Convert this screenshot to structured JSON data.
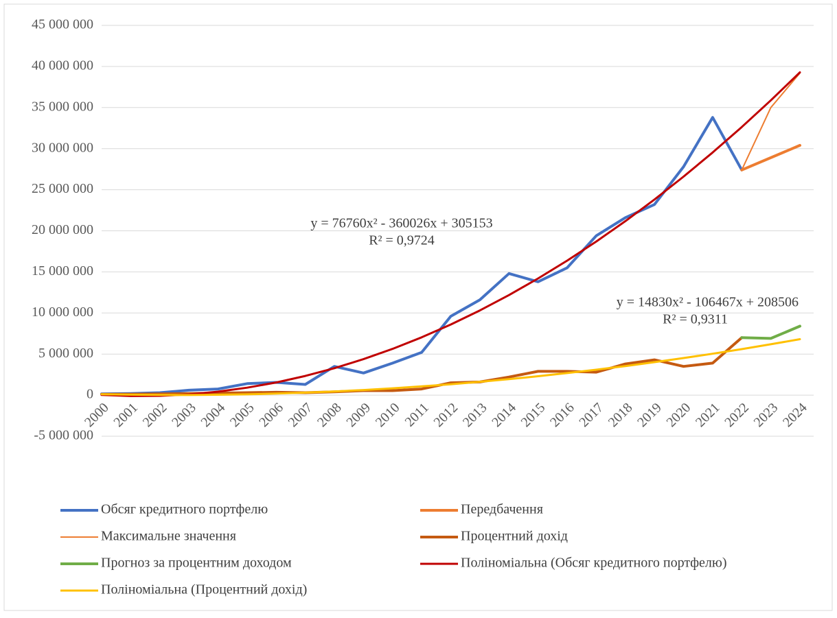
{
  "chart_data": {
    "type": "line",
    "categories": [
      "2000",
      "2001",
      "2002",
      "2003",
      "2004",
      "2005",
      "2006",
      "2007",
      "2008",
      "2009",
      "2010",
      "2011",
      "2012",
      "2013",
      "2014",
      "2015",
      "2016",
      "2017",
      "2018",
      "2019",
      "2020",
      "2021",
      "2022",
      "2023",
      "2024"
    ],
    "ylim": [
      -5000000,
      45000000
    ],
    "yticks": [
      {
        "value": -5000000,
        "label": "-5 000 000"
      },
      0,
      {
        "value": 5000000,
        "label": "5 000 000"
      },
      {
        "value": 10000000,
        "label": "10 000 000"
      },
      {
        "value": 15000000,
        "label": "15 000 000"
      },
      {
        "value": 20000000,
        "label": "20 000 000"
      },
      {
        "value": 25000000,
        "label": "25 000 000"
      },
      {
        "value": 30000000,
        "label": "30 000 000"
      },
      {
        "value": 35000000,
        "label": "35 000 000"
      },
      {
        "value": 40000000,
        "label": "40 000 000"
      },
      {
        "value": 45000000,
        "label": "45 000 000"
      }
    ],
    "grid": true,
    "legend": "bottom",
    "series": [
      {
        "name": "Обсяг кредитного портфелю",
        "color": "#4472c4",
        "width": 4,
        "values": [
          150000,
          200000,
          300000,
          600000,
          750000,
          1400000,
          1550000,
          1300000,
          3500000,
          2700000,
          3900000,
          5200000,
          9600000,
          11600000,
          14800000,
          13800000,
          15500000,
          19400000,
          21600000,
          23200000,
          27800000,
          33800000,
          27400000,
          null,
          null
        ]
      },
      {
        "name": "Передбачення",
        "color": "#ed7d31",
        "width": 4,
        "values": [
          null,
          null,
          null,
          null,
          null,
          null,
          null,
          null,
          null,
          null,
          null,
          null,
          null,
          null,
          null,
          null,
          null,
          null,
          null,
          null,
          null,
          null,
          27400000,
          28900000,
          30400000
        ]
      },
      {
        "name": "Максимальне значення",
        "color": "#ed7d31",
        "width": 2,
        "values": [
          null,
          null,
          null,
          null,
          null,
          null,
          null,
          null,
          null,
          null,
          null,
          null,
          null,
          null,
          null,
          null,
          null,
          null,
          null,
          null,
          null,
          null,
          27400000,
          35000000,
          39200000
        ]
      },
      {
        "name": "Процентний дохід",
        "color": "#c55a11",
        "width": 4,
        "values": [
          100000,
          120000,
          150000,
          200000,
          250000,
          300000,
          350000,
          300000,
          400000,
          550000,
          550000,
          750000,
          1500000,
          1600000,
          2200000,
          2900000,
          2900000,
          2800000,
          3800000,
          4300000,
          3500000,
          3900000,
          7000000,
          null,
          null
        ]
      },
      {
        "name": "Прогноз за процентним доходом",
        "color": "#70ad47",
        "width": 4,
        "values": [
          null,
          null,
          null,
          null,
          null,
          null,
          null,
          null,
          null,
          null,
          null,
          null,
          null,
          null,
          null,
          null,
          null,
          null,
          null,
          null,
          null,
          null,
          7000000,
          6900000,
          8400000
        ]
      },
      {
        "name": "Поліноміальна (Обсяг кредитного портфелю)",
        "color": "#c00000",
        "width": 3,
        "values": [
          21887,
          -107859,
          -84085,
          93209,
          424023,
          908357,
          1546211,
          2337585,
          3282479,
          4380893,
          5632827,
          7038281,
          8597255,
          10309749,
          12175763,
          14195297,
          16368351,
          18694925,
          21175019,
          23808633,
          26595767,
          29536421,
          32630595,
          35878289,
          39279503
        ]
      },
      {
        "name": "Поліноміальна (Процентний дохід)",
        "color": "#ffc000",
        "width": 3,
        "values": [
          116869,
          54892,
          22575,
          19918,
          46921,
          103584,
          189907,
          305890,
          451533,
          626836,
          831799,
          1066422,
          1330705,
          1624648,
          1948251,
          2301514,
          2684437,
          3097020,
          3539263,
          4011166,
          4512529,
          5043552,
          5604235,
          6194578,
          6814581
        ]
      }
    ],
    "annotations": [
      {
        "text": "y = 76760x² - 360026x + 305153"
      },
      {
        "text": "R² = 0,9724"
      },
      {
        "text": "y = 14830x² - 106467x + 208506"
      },
      {
        "text": "R² = 0,9311"
      }
    ]
  }
}
